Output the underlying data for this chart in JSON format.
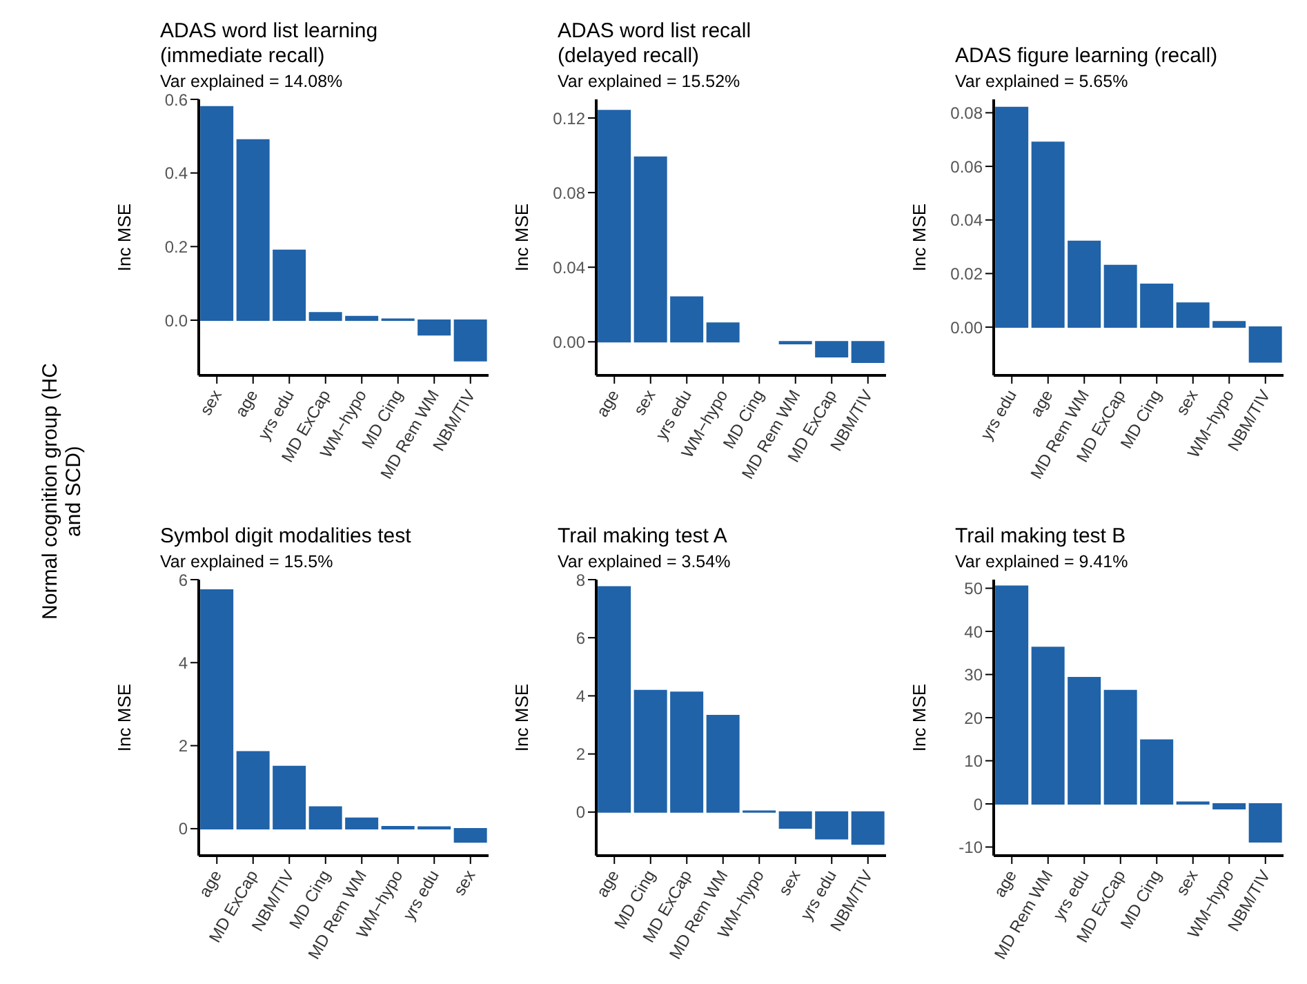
{
  "chart_data": [
    {
      "type": "bar",
      "title": "ADAS word list learning (immediate recall)",
      "subtitle": "Var explained = 14.08%",
      "ylabel": "Inc MSE",
      "annotations": [
        "Normal cognition group (HC and SCD)"
      ],
      "categories": [
        "sex",
        "age",
        "yrs edu",
        "MD ExCap",
        "WM−hypo",
        "MD Cing",
        "MD Rem WM",
        "NBM/TIV"
      ],
      "values": [
        0.58,
        0.49,
        0.19,
        0.02,
        0.01,
        0.003,
        -0.04,
        -0.11
      ],
      "color": "#2063a9",
      "ylim": [
        -0.15,
        0.6
      ],
      "yticks": [
        {
          "value": 0,
          "label": "0.0"
        },
        0.2,
        0.4,
        0.6
      ]
    },
    {
      "type": "bar",
      "title": "ADAS word list recall (delayed recall)",
      "subtitle": "Var explained = 15.52%",
      "ylabel": "Inc MSE",
      "categories": [
        "age",
        "sex",
        "yrs edu",
        "WM−hypo",
        "MD Cing",
        "MD Rem WM",
        "MD ExCap",
        "NBM/TIV"
      ],
      "values": [
        0.124,
        0.099,
        0.024,
        0.01,
        null,
        -0.001,
        -0.008,
        -0.011
      ],
      "color": "#2063a9",
      "ylim": [
        -0.018,
        0.13
      ],
      "yticks": [
        {
          "value": 0,
          "label": "0.00"
        },
        {
          "value": 0.04,
          "label": "0.04"
        },
        {
          "value": 0.08,
          "label": "0.08"
        },
        {
          "value": 0.12,
          "label": "0.12"
        }
      ]
    },
    {
      "type": "bar",
      "title": "ADAS figure learning (recall)",
      "subtitle": "Var explained = 5.65%",
      "ylabel": "Inc MSE",
      "categories": [
        "yrs edu",
        "age",
        "MD Rem WM",
        "MD ExCap",
        "MD Cing",
        "sex",
        "WM−hypo",
        "NBM/TIV"
      ],
      "values": [
        0.082,
        0.069,
        0.032,
        0.023,
        0.016,
        0.009,
        0.002,
        -0.013
      ],
      "color": "#2063a9",
      "ylim": [
        -0.018,
        0.085
      ],
      "yticks": [
        {
          "value": 0,
          "label": "0.00"
        },
        {
          "value": 0.02,
          "label": "0.02"
        },
        {
          "value": 0.04,
          "label": "0.04"
        },
        {
          "value": 0.06,
          "label": "0.06"
        },
        {
          "value": 0.08,
          "label": "0.08"
        }
      ]
    },
    {
      "type": "bar",
      "title": "Symbol digit modalities test",
      "subtitle": "Var explained = 15.5%",
      "ylabel": "Inc MSE",
      "categories": [
        "age",
        "MD ExCap",
        "NBM/TIV",
        "MD Cing",
        "MD Rem WM",
        "WM−hypo",
        "yrs edu",
        "sex"
      ],
      "values": [
        5.75,
        1.85,
        1.5,
        0.52,
        0.25,
        0.05,
        0.04,
        -0.32
      ],
      "color": "#2063a9",
      "ylim": [
        -0.65,
        6
      ],
      "yticks": [
        0,
        2,
        4,
        6
      ]
    },
    {
      "type": "bar",
      "title": "Trail making test A",
      "subtitle": "Var explained = 3.54%",
      "ylabel": "Inc MSE",
      "categories": [
        "age",
        "MD Cing",
        "MD ExCap",
        "MD Rem WM",
        "WM−hypo",
        "sex",
        "yrs edu",
        "NBM/TIV"
      ],
      "values": [
        7.75,
        4.18,
        4.12,
        3.32,
        0.03,
        -0.55,
        -0.92,
        -1.1
      ],
      "color": "#2063a9",
      "ylim": [
        -1.5,
        8
      ],
      "yticks": [
        0,
        2,
        4,
        6,
        8
      ]
    },
    {
      "type": "bar",
      "title": "Trail making test B",
      "subtitle": "Var explained = 9.41%",
      "ylabel": "Inc MSE",
      "categories": [
        "age",
        "MD Rem WM",
        "yrs edu",
        "MD ExCap",
        "MD Cing",
        "sex",
        "WM−hypo",
        "NBM/TIV"
      ],
      "values": [
        50.5,
        36.3,
        29.3,
        26.3,
        14.8,
        0.4,
        -1.1,
        -8.8
      ],
      "color": "#2063a9",
      "ylim": [
        -12,
        52
      ],
      "yticks": [
        -10,
        0,
        10,
        20,
        30,
        40,
        50
      ]
    }
  ]
}
